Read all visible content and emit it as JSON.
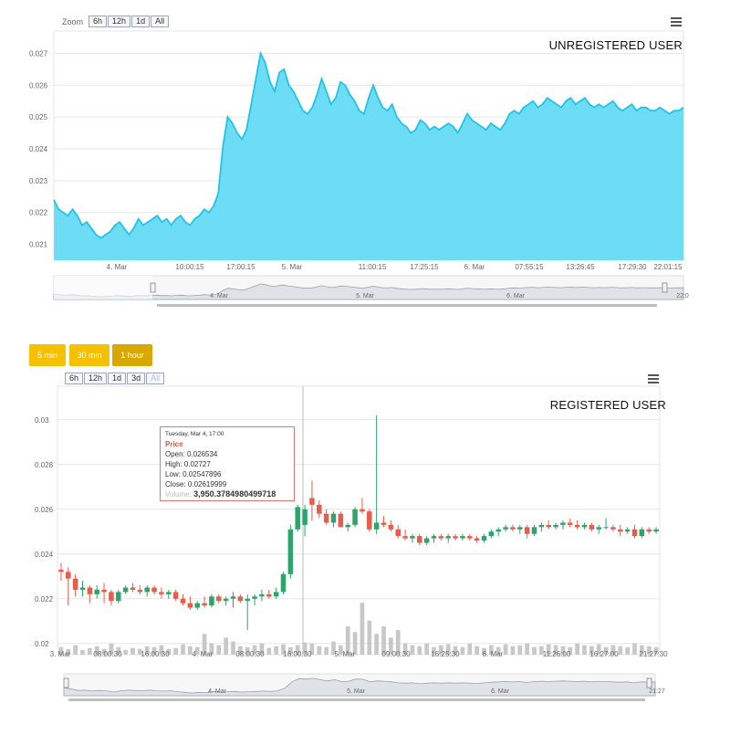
{
  "top": {
    "zoom_label": "Zoom",
    "zoom_buttons": [
      "6h",
      "12h",
      "1d",
      "All"
    ],
    "tag": "UNREGISTERED USER",
    "menu_icon": "hamburger-menu-icon",
    "navigator_x_labels": [
      "4. Mar",
      "5. Mar",
      "6. Mar",
      "22:0"
    ]
  },
  "bottom": {
    "interval_buttons": [
      "5 min",
      "30 min",
      "1 hour"
    ],
    "interval_active": "1 hour",
    "interval_color": "#f6c000",
    "interval_active_color": "#d9a800",
    "zoom_buttons": [
      "6h",
      "12h",
      "1d",
      "3d",
      "All"
    ],
    "tag": "REGISTERED USER",
    "menu_icon": "hamburger-menu-icon",
    "navigator_x_labels": [
      "4. Mar",
      "5. Mar",
      "6. Mar",
      "21:27"
    ],
    "tooltip": {
      "date": "Tuesday, Mar 4, 17:00",
      "series": "Price",
      "open": "Open: 0.026534",
      "high": "High: 0.02727",
      "low": "Low: 0.02547896",
      "close": "Close: 0.02619999",
      "volume_label": "Volume:",
      "volume_value": "3,950.3784980499718"
    }
  },
  "chart_data": [
    {
      "type": "area",
      "color": "#6ddcf5",
      "line_color": "#21c4e8",
      "ylim": [
        0.0205,
        0.0277
      ],
      "y_ticks": [
        "0.021",
        "0.022",
        "0.023",
        "0.024",
        "0.025",
        "0.026",
        "0.027"
      ],
      "x_ticks": [
        "4. Mar",
        "10:00:15",
        "17:00:15",
        "5. Mar",
        "11:00:15",
        "17:25:15",
        "6. Mar",
        "07:55:15",
        "13:26:45",
        "17:29:30",
        "22:01:15"
      ],
      "values": [
        0.0224,
        0.0221,
        0.022,
        0.0219,
        0.0221,
        0.0219,
        0.0216,
        0.0217,
        0.0215,
        0.0213,
        0.0212,
        0.0213,
        0.0214,
        0.0216,
        0.0217,
        0.0215,
        0.0213,
        0.0215,
        0.0218,
        0.0216,
        0.0217,
        0.0218,
        0.0219,
        0.0217,
        0.0218,
        0.0216,
        0.0218,
        0.0219,
        0.0217,
        0.0216,
        0.0218,
        0.0219,
        0.0221,
        0.022,
        0.0222,
        0.0226,
        0.0241,
        0.025,
        0.0248,
        0.0245,
        0.0243,
        0.0246,
        0.0254,
        0.0262,
        0.027,
        0.0267,
        0.0261,
        0.0258,
        0.0264,
        0.0265,
        0.026,
        0.0258,
        0.0255,
        0.0252,
        0.0251,
        0.0253,
        0.0257,
        0.0262,
        0.0258,
        0.0254,
        0.0256,
        0.0261,
        0.026,
        0.0257,
        0.0255,
        0.0252,
        0.0251,
        0.0256,
        0.026,
        0.0256,
        0.0253,
        0.0252,
        0.0254,
        0.025,
        0.0248,
        0.0247,
        0.0245,
        0.0246,
        0.0249,
        0.0248,
        0.0246,
        0.0247,
        0.0246,
        0.0247,
        0.0248,
        0.0247,
        0.0245,
        0.0248,
        0.0251,
        0.0249,
        0.0248,
        0.0247,
        0.0246,
        0.0248,
        0.0247,
        0.0246,
        0.0248,
        0.0251,
        0.0252,
        0.0251,
        0.0253,
        0.0254,
        0.0255,
        0.0253,
        0.0254,
        0.0256,
        0.0255,
        0.0254,
        0.0253,
        0.0255,
        0.0256,
        0.0254,
        0.0255,
        0.0256,
        0.0254,
        0.0253,
        0.0254,
        0.0253,
        0.0254,
        0.0255,
        0.0253,
        0.0252,
        0.0253,
        0.0254,
        0.0252,
        0.0253,
        0.0253,
        0.0252,
        0.0252,
        0.0253,
        0.0252,
        0.0251,
        0.0252,
        0.0252,
        0.0253
      ]
    },
    {
      "type": "candlestick",
      "up_color": "#2fa36b",
      "down_color": "#e85c4a",
      "volume_color": "#c8c8c8",
      "ylim": [
        0.0195,
        0.0315
      ],
      "y_ticks": [
        "0.02",
        "0.022",
        "0.024",
        "0.026",
        "0.028",
        "0.03"
      ],
      "x_ticks": [
        "3. Mar",
        "08:00:30",
        "16:00:30",
        "4. Mar",
        "08:00:30",
        "16:00:30",
        "5. Mar",
        "09:00:30",
        "16:25:30",
        "6. Mar",
        "11:26:00",
        "16:27:00",
        "21:27:30"
      ],
      "candles": [
        [
          0.0233,
          0.0236,
          0.0228,
          0.0232
        ],
        [
          0.0232,
          0.0234,
          0.0217,
          0.0229
        ],
        [
          0.0229,
          0.0231,
          0.0221,
          0.0224
        ],
        [
          0.0224,
          0.0228,
          0.0221,
          0.0225
        ],
        [
          0.0225,
          0.0226,
          0.0218,
          0.0222
        ],
        [
          0.0222,
          0.0226,
          0.022,
          0.0224
        ],
        [
          0.0224,
          0.0227,
          0.0218,
          0.0223
        ],
        [
          0.0223,
          0.0224,
          0.0217,
          0.0219
        ],
        [
          0.0219,
          0.0224,
          0.0218,
          0.0223
        ],
        [
          0.0223,
          0.0226,
          0.0222,
          0.0225
        ],
        [
          0.0225,
          0.0227,
          0.0223,
          0.0224
        ],
        [
          0.0224,
          0.0226,
          0.0222,
          0.0223
        ],
        [
          0.0223,
          0.0226,
          0.0221,
          0.0225
        ],
        [
          0.0225,
          0.0226,
          0.0222,
          0.0223
        ],
        [
          0.0223,
          0.0225,
          0.022,
          0.0222
        ],
        [
          0.0222,
          0.0224,
          0.022,
          0.0223
        ],
        [
          0.0223,
          0.0224,
          0.0219,
          0.022
        ],
        [
          0.022,
          0.0222,
          0.0217,
          0.0218
        ],
        [
          0.0218,
          0.0221,
          0.0215,
          0.0216
        ],
        [
          0.0216,
          0.0219,
          0.0215,
          0.0218
        ],
        [
          0.0218,
          0.0221,
          0.0216,
          0.0217
        ],
        [
          0.0217,
          0.0222,
          0.0216,
          0.0221
        ],
        [
          0.0221,
          0.0222,
          0.0218,
          0.0219
        ],
        [
          0.0219,
          0.0221,
          0.0217,
          0.022
        ],
        [
          0.022,
          0.0223,
          0.0216,
          0.0221
        ],
        [
          0.0221,
          0.0222,
          0.0218,
          0.0219
        ],
        [
          0.0219,
          0.0222,
          0.0206,
          0.022
        ],
        [
          0.022,
          0.0222,
          0.0217,
          0.0221
        ],
        [
          0.0221,
          0.0224,
          0.0219,
          0.0222
        ],
        [
          0.0222,
          0.0224,
          0.022,
          0.0221
        ],
        [
          0.0221,
          0.0225,
          0.022,
          0.0223
        ],
        [
          0.0223,
          0.0232,
          0.0222,
          0.0231
        ],
        [
          0.0231,
          0.0253,
          0.0229,
          0.0251
        ],
        [
          0.0251,
          0.0262,
          0.025,
          0.0261
        ],
        [
          0.0253,
          0.0262,
          0.0248,
          0.026
        ],
        [
          0.0265,
          0.02727,
          0.02548,
          0.0262
        ],
        [
          0.0262,
          0.0264,
          0.0256,
          0.0258
        ],
        [
          0.0258,
          0.026,
          0.0253,
          0.0254
        ],
        [
          0.0254,
          0.0259,
          0.0252,
          0.0258
        ],
        [
          0.0258,
          0.0259,
          0.0253,
          0.0252
        ],
        [
          0.0252,
          0.0254,
          0.025,
          0.0253
        ],
        [
          0.0253,
          0.0261,
          0.0252,
          0.026
        ],
        [
          0.026,
          0.0265,
          0.0258,
          0.0259
        ],
        [
          0.0259,
          0.026,
          0.025,
          0.0251
        ],
        [
          0.0251,
          0.0302,
          0.0249,
          0.0254
        ],
        [
          0.0254,
          0.0257,
          0.0252,
          0.0253
        ],
        [
          0.0253,
          0.0255,
          0.025,
          0.0251
        ],
        [
          0.0251,
          0.0253,
          0.0247,
          0.0248
        ],
        [
          0.0248,
          0.0251,
          0.0246,
          0.0247
        ],
        [
          0.0247,
          0.0249,
          0.0245,
          0.0248
        ],
        [
          0.0248,
          0.0249,
          0.0244,
          0.0245
        ],
        [
          0.0245,
          0.0248,
          0.0244,
          0.0247
        ],
        [
          0.0247,
          0.0249,
          0.0245,
          0.0248
        ],
        [
          0.0248,
          0.0249,
          0.0246,
          0.0247
        ],
        [
          0.0247,
          0.0249,
          0.0245,
          0.0248
        ],
        [
          0.0248,
          0.0249,
          0.0246,
          0.0247
        ],
        [
          0.0247,
          0.0249,
          0.0246,
          0.0248
        ],
        [
          0.0248,
          0.0249,
          0.0246,
          0.0247
        ],
        [
          0.0247,
          0.0248,
          0.0245,
          0.0246
        ],
        [
          0.0246,
          0.0249,
          0.0245,
          0.0248
        ],
        [
          0.0248,
          0.0251,
          0.0247,
          0.025
        ],
        [
          0.025,
          0.0252,
          0.0248,
          0.0251
        ],
        [
          0.0251,
          0.0253,
          0.025,
          0.0252
        ],
        [
          0.0252,
          0.0253,
          0.025,
          0.0251
        ],
        [
          0.0251,
          0.0253,
          0.0249,
          0.0252
        ],
        [
          0.0252,
          0.0253,
          0.0247,
          0.0249
        ],
        [
          0.0249,
          0.0253,
          0.0248,
          0.0252
        ],
        [
          0.0252,
          0.0254,
          0.025,
          0.0253
        ],
        [
          0.0253,
          0.0255,
          0.0251,
          0.0252
        ],
        [
          0.0252,
          0.0254,
          0.0251,
          0.0253
        ],
        [
          0.0253,
          0.0255,
          0.0251,
          0.0254
        ],
        [
          0.0254,
          0.0256,
          0.0252,
          0.0253
        ],
        [
          0.0253,
          0.0255,
          0.0251,
          0.0252
        ],
        [
          0.0252,
          0.0254,
          0.0251,
          0.0253
        ],
        [
          0.0253,
          0.0254,
          0.025,
          0.0251
        ],
        [
          0.0251,
          0.0253,
          0.0249,
          0.0252
        ],
        [
          0.0252,
          0.0256,
          0.0251,
          0.0252
        ],
        [
          0.0252,
          0.0253,
          0.025,
          0.0251
        ],
        [
          0.0251,
          0.0253,
          0.0248,
          0.025
        ],
        [
          0.025,
          0.0252,
          0.0249,
          0.0251
        ],
        [
          0.0251,
          0.0253,
          0.0247,
          0.0248
        ],
        [
          0.0248,
          0.0252,
          0.0247,
          0.0251
        ],
        [
          0.0251,
          0.0252,
          0.0249,
          0.025
        ],
        [
          0.025,
          0.0252,
          0.0249,
          0.0251
        ]
      ],
      "volumes": [
        8,
        6,
        10,
        5,
        7,
        9,
        6,
        12,
        8,
        5,
        7,
        6,
        9,
        8,
        10,
        6,
        7,
        11,
        9,
        8,
        22,
        12,
        10,
        18,
        14,
        9,
        8,
        10,
        12,
        7,
        9,
        11,
        8,
        10,
        13,
        12,
        9,
        8,
        14,
        10,
        30,
        24,
        55,
        36,
        22,
        30,
        18,
        26,
        12,
        10,
        9,
        12,
        8,
        10,
        11,
        9,
        8,
        12,
        9,
        7,
        10,
        8,
        11,
        9,
        10,
        12,
        8,
        9,
        11,
        10,
        9,
        8,
        12,
        10,
        9,
        11,
        8,
        10,
        9,
        8,
        12,
        10,
        9,
        8
      ]
    }
  ]
}
